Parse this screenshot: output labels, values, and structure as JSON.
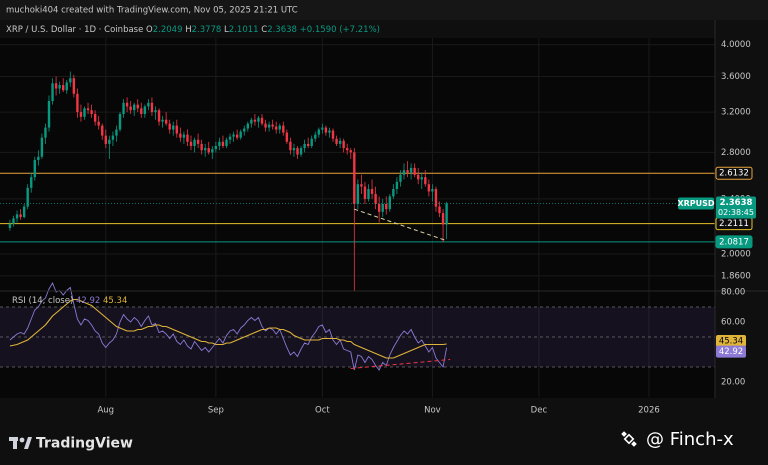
{
  "chart_data": {
    "type": "candlestick",
    "author_line": "muchoki404 created with TradingView.com, Nov 05, 2025 21:21 UTC",
    "symbol_line": "XRP / U.S. Dollar · 1D · Coinbase",
    "ohlc_labels": [
      "O",
      "H",
      "L",
      "C"
    ],
    "change": {
      "value": 0.159,
      "label": "+0.1590"
    },
    "change_pct": {
      "value": 7.21,
      "label": "(+7.21%)"
    },
    "ticker": "XRPUSD",
    "countdown": "02:38:45",
    "up_color": "#089981",
    "down_color": "#f23645",
    "log_scale": true,
    "grid": true,
    "xlim": [
      -2.8,
      198.6
    ],
    "xticks": [
      {
        "value": 27,
        "label": "Aug"
      },
      {
        "value": 58,
        "label": "Sep"
      },
      {
        "value": 88,
        "label": "Oct"
      },
      {
        "value": 119,
        "label": "Nov"
      },
      {
        "value": 149,
        "label": "Dec"
      },
      {
        "value": 180,
        "label": "2026"
      }
    ],
    "ylim": [
      1.775,
      4.09
    ],
    "yticks": [
      {
        "value": 4,
        "label": "4.0000"
      },
      {
        "value": 3.6,
        "label": "3.6000"
      },
      {
        "value": 3.2,
        "label": "3.2000"
      },
      {
        "value": 2.8,
        "label": "2.8000"
      },
      {
        "value": 2.4,
        "label": "2.4000"
      },
      {
        "value": 2,
        "label": "2.0000"
      },
      {
        "value": 1.86,
        "label": "1.8600"
      }
    ],
    "candles": [
      [
        2.18,
        2.24,
        2.16,
        2.21
      ],
      [
        2.21,
        2.27,
        2.19,
        2.25
      ],
      [
        2.25,
        2.31,
        2.22,
        2.28
      ],
      [
        2.28,
        2.32,
        2.24,
        2.26
      ],
      [
        2.26,
        2.36,
        2.25,
        2.34
      ],
      [
        2.34,
        2.52,
        2.32,
        2.49
      ],
      [
        2.49,
        2.62,
        2.45,
        2.58
      ],
      [
        2.58,
        2.76,
        2.55,
        2.73
      ],
      [
        2.73,
        2.82,
        2.68,
        2.76
      ],
      [
        2.76,
        2.98,
        2.74,
        2.94
      ],
      [
        2.94,
        3.08,
        2.88,
        3.04
      ],
      [
        3.04,
        3.38,
        3.0,
        3.32
      ],
      [
        3.32,
        3.58,
        3.28,
        3.52
      ],
      [
        3.52,
        3.6,
        3.38,
        3.46
      ],
      [
        3.46,
        3.54,
        3.4,
        3.5
      ],
      [
        3.5,
        3.58,
        3.42,
        3.44
      ],
      [
        3.44,
        3.56,
        3.4,
        3.53
      ],
      [
        3.53,
        3.66,
        3.48,
        3.58
      ],
      [
        3.58,
        3.62,
        3.36,
        3.4
      ],
      [
        3.4,
        3.46,
        3.14,
        3.2
      ],
      [
        3.2,
        3.28,
        3.1,
        3.15
      ],
      [
        3.15,
        3.26,
        3.12,
        3.24
      ],
      [
        3.24,
        3.3,
        3.18,
        3.22
      ],
      [
        3.22,
        3.28,
        3.14,
        3.18
      ],
      [
        3.18,
        3.22,
        3.06,
        3.1
      ],
      [
        3.1,
        3.16,
        3.02,
        3.06
      ],
      [
        3.06,
        3.08,
        2.92,
        2.96
      ],
      [
        2.96,
        3.02,
        2.84,
        2.88
      ],
      [
        2.88,
        2.96,
        2.74,
        2.92
      ],
      [
        2.92,
        3.0,
        2.86,
        2.96
      ],
      [
        2.96,
        3.06,
        2.9,
        3.02
      ],
      [
        3.02,
        3.2,
        3.0,
        3.18
      ],
      [
        3.18,
        3.34,
        3.14,
        3.3
      ],
      [
        3.3,
        3.36,
        3.2,
        3.26
      ],
      [
        3.26,
        3.32,
        3.18,
        3.22
      ],
      [
        3.22,
        3.3,
        3.16,
        3.28
      ],
      [
        3.28,
        3.34,
        3.2,
        3.24
      ],
      [
        3.24,
        3.3,
        3.14,
        3.18
      ],
      [
        3.18,
        3.28,
        3.14,
        3.26
      ],
      [
        3.26,
        3.34,
        3.22,
        3.3
      ],
      [
        3.3,
        3.36,
        3.16,
        3.2
      ],
      [
        3.2,
        3.26,
        3.12,
        3.22
      ],
      [
        3.22,
        3.24,
        3.06,
        3.1
      ],
      [
        3.1,
        3.16,
        3.04,
        3.12
      ],
      [
        3.12,
        3.2,
        3.06,
        3.08
      ],
      [
        3.08,
        3.12,
        2.98,
        3.02
      ],
      [
        3.02,
        3.1,
        2.96,
        3.06
      ],
      [
        3.06,
        3.12,
        2.94,
        2.98
      ],
      [
        2.98,
        3.04,
        2.9,
        2.94
      ],
      [
        2.94,
        3.0,
        2.88,
        2.97
      ],
      [
        2.97,
        3.02,
        2.86,
        2.9
      ],
      [
        2.9,
        2.96,
        2.82,
        2.86
      ],
      [
        2.86,
        2.94,
        2.8,
        2.92
      ],
      [
        2.92,
        2.98,
        2.84,
        2.88
      ],
      [
        2.88,
        2.92,
        2.78,
        2.82
      ],
      [
        2.82,
        2.88,
        2.76,
        2.84
      ],
      [
        2.84,
        2.9,
        2.78,
        2.8
      ],
      [
        2.8,
        2.86,
        2.74,
        2.83
      ],
      [
        2.83,
        2.9,
        2.8,
        2.86
      ],
      [
        2.86,
        2.94,
        2.82,
        2.9
      ],
      [
        2.9,
        2.96,
        2.84,
        2.86
      ],
      [
        2.86,
        2.94,
        2.84,
        2.92
      ],
      [
        2.92,
        2.98,
        2.88,
        2.95
      ],
      [
        2.95,
        3.0,
        2.9,
        2.97
      ],
      [
        2.97,
        3.02,
        2.92,
        2.94
      ],
      [
        2.94,
        3.02,
        2.92,
        3.0
      ],
      [
        3.0,
        3.06,
        2.96,
        3.03
      ],
      [
        3.03,
        3.1,
        3.0,
        3.08
      ],
      [
        3.08,
        3.14,
        3.04,
        3.12
      ],
      [
        3.12,
        3.18,
        3.06,
        3.1
      ],
      [
        3.1,
        3.16,
        3.04,
        3.14
      ],
      [
        3.14,
        3.18,
        3.06,
        3.08
      ],
      [
        3.08,
        3.12,
        3.0,
        3.04
      ],
      [
        3.04,
        3.1,
        3.0,
        3.07
      ],
      [
        3.07,
        3.12,
        3.02,
        3.05
      ],
      [
        3.05,
        3.1,
        2.98,
        3.02
      ],
      [
        3.02,
        3.08,
        2.98,
        3.06
      ],
      [
        3.06,
        3.1,
        2.96,
        2.99
      ],
      [
        2.99,
        3.02,
        2.88,
        2.9
      ],
      [
        2.9,
        2.94,
        2.78,
        2.82
      ],
      [
        2.82,
        2.88,
        2.76,
        2.84
      ],
      [
        2.84,
        2.86,
        2.74,
        2.78
      ],
      [
        2.78,
        2.86,
        2.76,
        2.84
      ],
      [
        2.84,
        2.92,
        2.8,
        2.88
      ],
      [
        2.88,
        2.94,
        2.84,
        2.86
      ],
      [
        2.86,
        2.96,
        2.84,
        2.93
      ],
      [
        2.93,
        3.0,
        2.9,
        2.97
      ],
      [
        2.97,
        3.04,
        2.94,
        3.02
      ],
      [
        3.02,
        3.08,
        2.98,
        3.04
      ],
      [
        3.04,
        3.06,
        2.96,
        2.99
      ],
      [
        2.99,
        3.04,
        2.94,
        3.01
      ],
      [
        3.01,
        3.03,
        2.9,
        2.93
      ],
      [
        2.93,
        2.96,
        2.86,
        2.88
      ],
      [
        2.88,
        2.94,
        2.84,
        2.91
      ],
      [
        2.91,
        2.93,
        2.8,
        2.84
      ],
      [
        2.84,
        2.88,
        2.78,
        2.82
      ],
      [
        2.82,
        2.84,
        2.74,
        2.8
      ],
      [
        2.8,
        2.84,
        1.77,
        2.36
      ],
      [
        2.36,
        2.56,
        2.32,
        2.52
      ],
      [
        2.52,
        2.6,
        2.44,
        2.5
      ],
      [
        2.5,
        2.54,
        2.36,
        2.4
      ],
      [
        2.4,
        2.52,
        2.38,
        2.48
      ],
      [
        2.48,
        2.56,
        2.4,
        2.44
      ],
      [
        2.44,
        2.5,
        2.32,
        2.36
      ],
      [
        2.36,
        2.42,
        2.22,
        2.3
      ],
      [
        2.3,
        2.4,
        2.26,
        2.36
      ],
      [
        2.36,
        2.42,
        2.28,
        2.32
      ],
      [
        2.32,
        2.44,
        2.3,
        2.42
      ],
      [
        2.42,
        2.52,
        2.4,
        2.48
      ],
      [
        2.48,
        2.58,
        2.44,
        2.54
      ],
      [
        2.54,
        2.64,
        2.5,
        2.6
      ],
      [
        2.6,
        2.7,
        2.56,
        2.64
      ],
      [
        2.64,
        2.72,
        2.58,
        2.62
      ],
      [
        2.62,
        2.7,
        2.56,
        2.66
      ],
      [
        2.66,
        2.7,
        2.58,
        2.6
      ],
      [
        2.6,
        2.66,
        2.52,
        2.56
      ],
      [
        2.56,
        2.62,
        2.48,
        2.58
      ],
      [
        2.58,
        2.64,
        2.5,
        2.52
      ],
      [
        2.52,
        2.56,
        2.42,
        2.46
      ],
      [
        2.46,
        2.52,
        2.38,
        2.48
      ],
      [
        2.48,
        2.5,
        2.3,
        2.34
      ],
      [
        2.34,
        2.38,
        2.26,
        2.29
      ],
      [
        2.29,
        2.32,
        2.08,
        2.2049
      ],
      [
        2.2049,
        2.3778,
        2.1011,
        2.3638
      ]
    ],
    "hlines": [
      {
        "value": 2.6132,
        "color": "#e8a33d",
        "filled": false
      },
      {
        "value": 2.2111,
        "color": "#e6c229",
        "filled": false
      },
      {
        "value": 2.0817,
        "color": "#089981",
        "filled": true
      }
    ],
    "trendlines": [
      {
        "pane": "price",
        "points": [
          [
            97,
            2.32
          ],
          [
            123,
            2.09
          ]
        ],
        "color": "#e0d7a8"
      },
      {
        "pane": "rsi",
        "points": [
          [
            96,
            29
          ],
          [
            124,
            35
          ]
        ],
        "color": "#f23645"
      }
    ],
    "rsi": {
      "title": "RSI (14, close)",
      "ylim": [
        10,
        80
      ],
      "yticks": [
        {
          "value": 80,
          "label": "80.00"
        },
        {
          "value": 60,
          "label": "60.00"
        },
        {
          "value": 20,
          "label": "20.00"
        }
      ],
      "levels": [
        70,
        50,
        30
      ],
      "band_color": "#7e57c2",
      "series": [
        {
          "color": "#8c7ad6",
          "values": [
            48,
            50,
            52,
            53,
            52,
            56,
            62,
            68,
            70,
            74,
            76,
            82,
            86,
            80,
            81,
            78,
            81,
            83,
            72,
            62,
            58,
            62,
            61,
            58,
            54,
            52,
            46,
            43,
            46,
            48,
            52,
            60,
            65,
            62,
            60,
            63,
            61,
            57,
            61,
            64,
            58,
            59,
            53,
            54,
            52,
            49,
            52,
            47,
            45,
            48,
            44,
            42,
            47,
            44,
            41,
            43,
            40,
            43,
            46,
            49,
            46,
            51,
            54,
            55,
            52,
            56,
            58,
            61,
            63,
            61,
            63,
            57,
            54,
            56,
            55,
            52,
            55,
            49,
            43,
            38,
            40,
            37,
            42,
            46,
            45,
            50,
            53,
            57,
            58,
            53,
            55,
            48,
            45,
            48,
            42,
            41,
            40,
            28,
            38,
            37,
            33,
            37,
            35,
            31,
            28,
            33,
            31,
            38,
            43,
            47,
            51,
            54,
            52,
            55,
            50,
            46,
            48,
            44,
            40,
            43,
            36,
            33,
            30,
            42.92
          ]
        },
        {
          "color": "#e0b43a",
          "values": [
            44,
            44.5,
            45,
            46,
            47,
            48,
            50,
            52,
            54,
            56,
            58,
            61,
            64,
            66,
            68,
            70,
            72,
            74,
            75,
            75,
            74,
            73,
            72,
            71,
            69,
            67,
            65,
            63,
            61,
            59,
            57,
            56,
            55,
            54,
            54,
            54,
            55,
            55,
            56,
            57,
            57,
            58,
            58,
            57,
            57,
            56,
            55,
            54,
            53,
            52,
            51,
            50,
            49,
            48,
            47,
            47,
            46,
            46,
            45,
            45,
            45,
            46,
            46,
            47,
            48,
            49,
            50,
            51,
            52,
            53,
            54,
            55,
            55,
            56,
            56,
            56,
            55,
            55,
            54,
            53,
            51,
            50,
            49,
            48,
            48,
            48,
            48,
            48,
            49,
            49,
            49,
            49,
            49,
            48,
            48,
            47,
            47,
            45,
            44,
            43,
            42,
            41,
            40,
            39,
            38,
            37,
            36,
            36,
            36,
            37,
            38,
            39,
            40,
            41,
            42,
            43,
            44,
            45,
            45,
            45,
            45,
            45,
            45,
            45.34
          ]
        }
      ]
    },
    "brand": "TradingView",
    "watermark": "@ Finch-x"
  }
}
